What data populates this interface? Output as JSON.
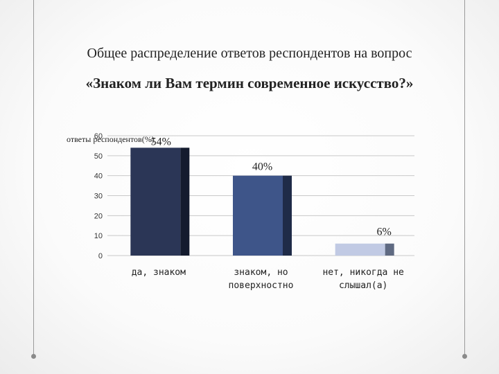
{
  "title_line1": "Общее распределение ответов респондентов на вопрос",
  "title_line2": "«Знаком ли Вам термин современное искусство?»",
  "chart_data": {
    "type": "bar",
    "categories": [
      [
        "да, знаком"
      ],
      [
        "знаком, но",
        "поверхностно"
      ],
      [
        "нет, никогда не",
        "слышал(а)"
      ]
    ],
    "series": [
      {
        "name": "",
        "values": [
          54,
          40,
          6
        ]
      }
    ],
    "data_labels": [
      "54%",
      "40%",
      "6%"
    ],
    "ylabel": "ответы респондентов(%)",
    "ylim": [
      0,
      60
    ],
    "yticks": [
      0,
      10,
      20,
      30,
      40,
      50,
      60
    ],
    "grid": true,
    "legend": "none",
    "colors": {
      "front": [
        "#2b3656",
        "#3e5589",
        "#c1cae4"
      ],
      "side": [
        "#141b2e",
        "#1f2b48",
        "#5f6a82"
      ],
      "grid": "#c8c8c8"
    }
  }
}
